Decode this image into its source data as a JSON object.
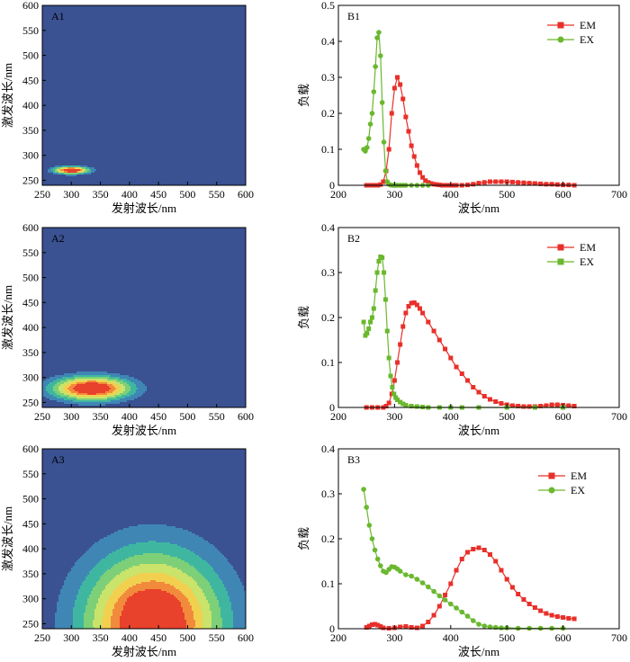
{
  "colors": {
    "contour_background": "#3a5192",
    "contour_levels": [
      "#3a5192",
      "#3f86b5",
      "#3fb7a0",
      "#7dcf78",
      "#c9e36b",
      "#f2d04f",
      "#f28a3c",
      "#e8412c"
    ],
    "em": "#e8302a",
    "ex": "#6ab82e"
  },
  "chart_data": [
    {
      "id": "A1",
      "type": "contour",
      "label": "A1",
      "xlabel": "发射波长/nm",
      "ylabel": "激发波长/nm",
      "xlim": [
        250,
        600
      ],
      "ylim": [
        240,
        600
      ],
      "xticks": [
        250,
        300,
        350,
        400,
        450,
        500,
        550,
        600
      ],
      "yticks": [
        250,
        300,
        350,
        400,
        450,
        500,
        550,
        600
      ],
      "peaks": [
        {
          "ex": 270,
          "em": 300,
          "sx": 20,
          "sy": 5,
          "amp": 1.0
        }
      ]
    },
    {
      "id": "A2",
      "type": "contour",
      "label": "A2",
      "xlabel": "发射波长/nm",
      "ylabel": "激发波长/nm",
      "xlim": [
        250,
        600
      ],
      "ylim": [
        240,
        600
      ],
      "xticks": [
        250,
        300,
        350,
        400,
        450,
        500,
        550,
        600
      ],
      "yticks": [
        250,
        300,
        350,
        400,
        450,
        500,
        550,
        600
      ],
      "peaks": [
        {
          "ex": 278,
          "em": 335,
          "sx": 45,
          "sy": 16,
          "amp": 1.0
        }
      ]
    },
    {
      "id": "A3",
      "type": "contour",
      "label": "A3",
      "xlabel": "发射波长/nm",
      "ylabel": "激发波长/nm",
      "xlim": [
        250,
        600
      ],
      "ylim": [
        240,
        600
      ],
      "xticks": [
        250,
        300,
        350,
        400,
        450,
        500,
        550,
        600
      ],
      "yticks": [
        250,
        300,
        350,
        400,
        450,
        500,
        550,
        600
      ],
      "peaks": [
        {
          "ex": 250,
          "em": 440,
          "sx": 80,
          "sy": 95,
          "amp": 1.0
        },
        {
          "ex": 295,
          "em": 440,
          "sx": 22,
          "sy": 10,
          "amp": 0.18
        }
      ]
    },
    {
      "id": "B1",
      "type": "line",
      "label": "B1",
      "xlabel": "波长/nm",
      "ylabel": "负载",
      "xlim": [
        200,
        700
      ],
      "ylim": [
        0,
        0.5
      ],
      "xticks": [
        200,
        300,
        400,
        500,
        600,
        700
      ],
      "yticks": [
        0,
        0.1,
        0.2,
        0.3,
        0.4,
        0.5
      ],
      "series": [
        {
          "name": "EM",
          "color": "#e8302a",
          "marker": "square",
          "x": [
            250,
            255,
            260,
            265,
            270,
            275,
            280,
            285,
            290,
            295,
            300,
            305,
            310,
            315,
            320,
            325,
            330,
            335,
            340,
            345,
            350,
            355,
            360,
            365,
            370,
            375,
            380,
            385,
            390,
            395,
            400,
            405,
            410,
            420,
            430,
            440,
            450,
            460,
            470,
            480,
            490,
            500,
            510,
            520,
            530,
            540,
            550,
            560,
            570,
            580,
            590,
            600,
            610,
            620
          ],
          "y": [
            0,
            0,
            0,
            0,
            0,
            0.002,
            0.01,
            0.04,
            0.1,
            0.2,
            0.27,
            0.3,
            0.28,
            0.24,
            0.19,
            0.15,
            0.11,
            0.08,
            0.055,
            0.035,
            0.022,
            0.013,
            0.008,
            0.005,
            0.003,
            0.002,
            0.001,
            0,
            0,
            0,
            0,
            0,
            0,
            0,
            0.001,
            0.003,
            0.006,
            0.008,
            0.01,
            0.01,
            0.01,
            0.01,
            0.009,
            0.008,
            0.007,
            0.006,
            0.005,
            0.004,
            0.003,
            0.003,
            0.002,
            0.001,
            0.001,
            0
          ]
        },
        {
          "name": "EX",
          "color": "#6ab82e",
          "marker": "circle",
          "x": [
            245,
            248,
            251,
            254,
            257,
            260,
            263,
            266,
            269,
            272,
            275,
            278,
            281,
            284,
            287,
            290,
            293,
            296,
            299,
            302,
            305,
            310,
            315,
            320,
            330,
            340,
            350,
            360
          ],
          "y": [
            0.1,
            0.095,
            0.105,
            0.13,
            0.17,
            0.2,
            0.26,
            0.33,
            0.41,
            0.425,
            0.36,
            0.23,
            0.12,
            0.04,
            0.01,
            0.003,
            0.001,
            0,
            0,
            0,
            0,
            0,
            0,
            0,
            0,
            0,
            0,
            0
          ]
        }
      ],
      "legend": [
        "EM",
        "EX"
      ]
    },
    {
      "id": "B2",
      "type": "line",
      "label": "B2",
      "xlabel": "波长/nm",
      "ylabel": "负载",
      "xlim": [
        200,
        700
      ],
      "ylim": [
        0,
        0.4
      ],
      "xticks": [
        200,
        300,
        400,
        500,
        600,
        700
      ],
      "yticks": [
        0,
        0.1,
        0.2,
        0.3,
        0.4
      ],
      "series": [
        {
          "name": "EM",
          "color": "#e8302a",
          "marker": "square",
          "x": [
            250,
            260,
            270,
            280,
            285,
            290,
            295,
            300,
            305,
            310,
            315,
            320,
            325,
            330,
            335,
            340,
            345,
            350,
            360,
            370,
            380,
            390,
            400,
            410,
            420,
            430,
            440,
            450,
            460,
            470,
            480,
            490,
            500,
            510,
            520,
            530,
            540,
            550,
            560,
            570,
            580,
            590,
            600,
            610,
            620
          ],
          "y": [
            0,
            0,
            0,
            0,
            0.003,
            0.01,
            0.03,
            0.06,
            0.1,
            0.14,
            0.18,
            0.21,
            0.225,
            0.232,
            0.233,
            0.228,
            0.22,
            0.21,
            0.19,
            0.17,
            0.15,
            0.13,
            0.11,
            0.09,
            0.075,
            0.06,
            0.045,
            0.034,
            0.025,
            0.018,
            0.013,
            0.009,
            0.006,
            0.004,
            0.003,
            0.002,
            0.002,
            0.002,
            0.003,
            0.004,
            0.006,
            0.006,
            0.005,
            0.004,
            0.003
          ]
        },
        {
          "name": "EX",
          "color": "#6ab82e",
          "marker": "square",
          "x": [
            245,
            248,
            251,
            254,
            257,
            260,
            263,
            266,
            269,
            272,
            275,
            278,
            281,
            284,
            287,
            290,
            293,
            296,
            299,
            302,
            305,
            310,
            315,
            320,
            330,
            340,
            350,
            360,
            380,
            400,
            420,
            450,
            500,
            550,
            600
          ],
          "y": [
            0.19,
            0.16,
            0.165,
            0.175,
            0.19,
            0.2,
            0.22,
            0.26,
            0.3,
            0.325,
            0.335,
            0.333,
            0.3,
            0.24,
            0.17,
            0.11,
            0.07,
            0.045,
            0.03,
            0.022,
            0.017,
            0.012,
            0.008,
            0.005,
            0.003,
            0.002,
            0.001,
            0,
            0,
            0,
            0,
            0,
            0,
            0,
            0
          ]
        }
      ],
      "legend": [
        "EM",
        "EX"
      ]
    },
    {
      "id": "B3",
      "type": "line",
      "label": "B3",
      "xlabel": "波长/nm",
      "ylabel": "负载",
      "xlim": [
        200,
        700
      ],
      "ylim": [
        0,
        0.4
      ],
      "xticks": [
        200,
        300,
        400,
        500,
        600,
        700
      ],
      "yticks": [
        0,
        0.1,
        0.2,
        0.3,
        0.4
      ],
      "series": [
        {
          "name": "EM",
          "color": "#e8302a",
          "marker": "square",
          "x": [
            250,
            255,
            260,
            265,
            270,
            275,
            280,
            290,
            300,
            310,
            320,
            330,
            340,
            350,
            360,
            370,
            380,
            390,
            400,
            410,
            420,
            430,
            440,
            450,
            460,
            470,
            480,
            490,
            500,
            510,
            520,
            530,
            540,
            550,
            560,
            570,
            580,
            590,
            600,
            610,
            620
          ],
          "y": [
            0.003,
            0.006,
            0.009,
            0.01,
            0.008,
            0.005,
            0.002,
            0.001,
            0.002,
            0.004,
            0.005,
            0.003,
            0.002,
            0.006,
            0.015,
            0.03,
            0.05,
            0.075,
            0.1,
            0.13,
            0.155,
            0.17,
            0.177,
            0.18,
            0.175,
            0.165,
            0.15,
            0.13,
            0.11,
            0.092,
            0.077,
            0.065,
            0.055,
            0.047,
            0.04,
            0.034,
            0.03,
            0.027,
            0.025,
            0.023,
            0.022
          ]
        },
        {
          "name": "EX",
          "color": "#6ab82e",
          "marker": "circle",
          "x": [
            245,
            250,
            255,
            260,
            265,
            270,
            275,
            280,
            285,
            290,
            295,
            300,
            305,
            310,
            320,
            330,
            340,
            350,
            360,
            370,
            380,
            390,
            400,
            410,
            420,
            430,
            440,
            450,
            460,
            470,
            480,
            490,
            500,
            520,
            540,
            560,
            580,
            600
          ],
          "y": [
            0.31,
            0.27,
            0.23,
            0.2,
            0.175,
            0.155,
            0.14,
            0.128,
            0.125,
            0.132,
            0.138,
            0.137,
            0.133,
            0.128,
            0.12,
            0.117,
            0.11,
            0.102,
            0.093,
            0.083,
            0.073,
            0.064,
            0.055,
            0.046,
            0.037,
            0.028,
            0.018,
            0.01,
            0.006,
            0.004,
            0.003,
            0.002,
            0.002,
            0.001,
            0.001,
            0.001,
            0.001,
            0.001
          ]
        }
      ],
      "legend": [
        "EM",
        "EX"
      ]
    }
  ]
}
